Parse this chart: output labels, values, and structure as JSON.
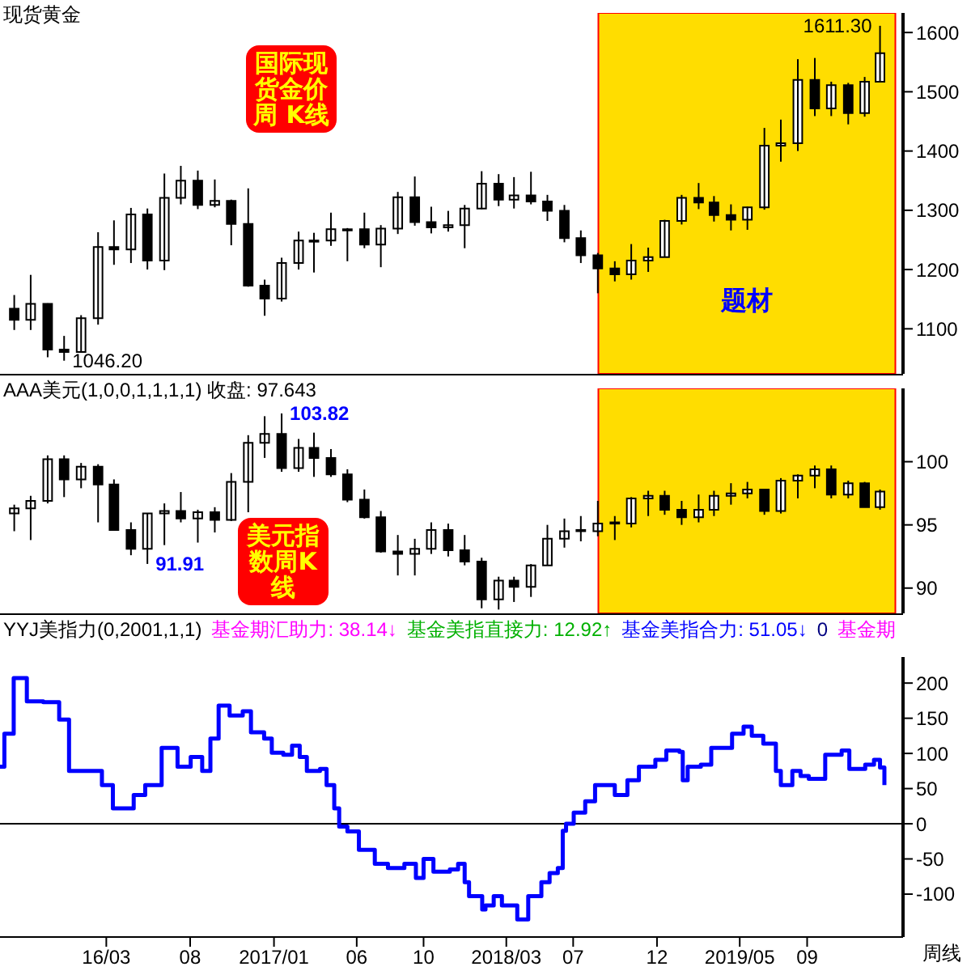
{
  "chart_data": [
    {
      "type": "candlestick",
      "title": "现货黄金",
      "color": "#000000",
      "x": [
        "2015-09-15",
        "2015-10-15",
        "2015-11-15",
        "2015-12-15",
        "2016-01-15",
        "2016-02-15",
        "2016-03-15",
        "2016-04-15",
        "2016-05-15",
        "2016-06-15",
        "2016-07-15",
        "2016-08-15",
        "2016-09-15",
        "2016-10-15",
        "2016-11-15",
        "2016-12-15",
        "2017-01-15",
        "2017-02-15",
        "2017-03-15",
        "2017-04-15",
        "2017-05-15",
        "2017-06-15",
        "2017-07-15",
        "2017-08-15",
        "2017-09-15",
        "2017-10-15",
        "2017-11-15",
        "2017-12-15",
        "2018-01-15",
        "2018-02-15",
        "2018-03-15",
        "2018-04-15",
        "2018-05-15",
        "2018-06-15",
        "2018-07-15",
        "2018-08-15",
        "2018-09-15",
        "2018-10-15",
        "2018-11-15",
        "2018-12-15",
        "2019-01-15",
        "2019-02-15",
        "2019-03-15",
        "2019-04-15",
        "2019-05-15",
        "2019-06-15",
        "2019-07-15",
        "2019-08-15",
        "2019-09-15",
        "2019-10-15",
        "2019-11-15",
        "2019-12-15",
        "2020-01-12"
      ],
      "ohlc": [
        [
          1134,
          1157,
          1098,
          1115
        ],
        [
          1115,
          1191,
          1098,
          1142
        ],
        [
          1142,
          1143,
          1052,
          1065
        ],
        [
          1065,
          1088,
          1046.2,
          1061
        ],
        [
          1061,
          1123,
          1060,
          1118
        ],
        [
          1118,
          1263,
          1107,
          1238
        ],
        [
          1238,
          1283,
          1208,
          1234
        ],
        [
          1234,
          1304,
          1211,
          1293
        ],
        [
          1293,
          1303,
          1200,
          1215
        ],
        [
          1215,
          1362,
          1199,
          1321
        ],
        [
          1321,
          1375,
          1310,
          1350
        ],
        [
          1350,
          1367,
          1302,
          1309
        ],
        [
          1309,
          1352,
          1305,
          1316
        ],
        [
          1316,
          1318,
          1241,
          1277
        ],
        [
          1277,
          1337,
          1171,
          1173
        ],
        [
          1173,
          1183,
          1122,
          1151
        ],
        [
          1151,
          1220,
          1146,
          1211
        ],
        [
          1211,
          1264,
          1200,
          1249
        ],
        [
          1249,
          1262,
          1195,
          1247
        ],
        [
          1249,
          1296,
          1240,
          1268
        ],
        [
          1268,
          1270,
          1214,
          1266
        ],
        [
          1268,
          1296,
          1236,
          1242
        ],
        [
          1242,
          1275,
          1204,
          1269
        ],
        [
          1269,
          1331,
          1260,
          1322
        ],
        [
          1322,
          1357,
          1274,
          1280
        ],
        [
          1280,
          1306,
          1261,
          1271
        ],
        [
          1271,
          1299,
          1264,
          1275
        ],
        [
          1275,
          1309,
          1236,
          1303
        ],
        [
          1303,
          1366,
          1302,
          1345
        ],
        [
          1345,
          1361,
          1307,
          1318
        ],
        [
          1318,
          1356,
          1303,
          1325
        ],
        [
          1325,
          1365,
          1310,
          1315
        ],
        [
          1315,
          1326,
          1282,
          1299
        ],
        [
          1299,
          1309,
          1246,
          1253
        ],
        [
          1253,
          1266,
          1211,
          1224
        ],
        [
          1224,
          1228,
          1160,
          1202
        ],
        [
          1202,
          1214,
          1180,
          1192
        ],
        [
          1192,
          1243,
          1183,
          1215
        ],
        [
          1215,
          1237,
          1196,
          1221
        ],
        [
          1221,
          1284,
          1221,
          1282
        ],
        [
          1282,
          1326,
          1276,
          1321
        ],
        [
          1321,
          1346,
          1302,
          1313
        ],
        [
          1313,
          1324,
          1281,
          1292
        ],
        [
          1292,
          1310,
          1266,
          1284
        ],
        [
          1284,
          1306,
          1267,
          1305
        ],
        [
          1305,
          1439,
          1301,
          1409
        ],
        [
          1409,
          1453,
          1382,
          1413
        ],
        [
          1413,
          1555,
          1400,
          1520
        ],
        [
          1520,
          1557,
          1459,
          1472
        ],
        [
          1472,
          1517,
          1459,
          1511
        ],
        [
          1511,
          1515,
          1445,
          1464
        ],
        [
          1464,
          1525,
          1458,
          1517
        ],
        [
          1517,
          1611.3,
          1517,
          1565
        ]
      ],
      "xlim": [
        "2015-08-20",
        "2020-02-23"
      ],
      "ylim": [
        1024,
        1633
      ],
      "yticks": [
        1100,
        1200,
        1300,
        1400,
        1500,
        1600
      ],
      "tick_labels": "y",
      "bands": [
        {
          "axis": "x",
          "from": "2018-08-16",
          "to": "2020-02-09",
          "label": "题材",
          "color": "#ffdd00"
        }
      ],
      "annotations": [
        "国际现货金价周 K线",
        {
          "text": "1611.30",
          "x": "2020-01-12",
          "y": 1611.3
        },
        {
          "text": "1046.20",
          "x": "2015-12-15",
          "y": 1046.2
        }
      ]
    },
    {
      "type": "candlestick",
      "title": "AAA美元(1,0,0,1,1,1,1) 收盘: 97.643",
      "color": "#000000",
      "x": [
        "2015-09-15",
        "2015-10-15",
        "2015-11-15",
        "2015-12-15",
        "2016-01-15",
        "2016-02-15",
        "2016-03-15",
        "2016-04-15",
        "2016-05-15",
        "2016-06-15",
        "2016-07-15",
        "2016-08-15",
        "2016-09-15",
        "2016-10-15",
        "2016-11-15",
        "2016-12-15",
        "2017-01-15",
        "2017-02-15",
        "2017-03-15",
        "2017-04-15",
        "2017-05-15",
        "2017-06-15",
        "2017-07-15",
        "2017-08-15",
        "2017-09-15",
        "2017-10-15",
        "2017-11-15",
        "2017-12-15",
        "2018-01-15",
        "2018-02-15",
        "2018-03-15",
        "2018-04-15",
        "2018-05-15",
        "2018-06-15",
        "2018-07-15",
        "2018-08-15",
        "2018-09-15",
        "2018-10-15",
        "2018-11-15",
        "2018-12-15",
        "2019-01-15",
        "2019-02-15",
        "2019-03-15",
        "2019-04-15",
        "2019-05-15",
        "2019-06-15",
        "2019-07-15",
        "2019-08-15",
        "2019-09-15",
        "2019-10-15",
        "2019-11-15",
        "2019-12-15",
        "2020-01-12"
      ],
      "ohlc": [
        [
          95.9,
          96.6,
          94.5,
          96.3
        ],
        [
          96.3,
          97.3,
          93.8,
          96.9
        ],
        [
          96.9,
          100.5,
          96.7,
          100.2
        ],
        [
          100.2,
          100.5,
          97.2,
          98.6
        ],
        [
          98.6,
          99.9,
          97.9,
          99.6
        ],
        [
          99.6,
          99.8,
          95.2,
          98.2
        ],
        [
          98.2,
          98.6,
          94.6,
          94.6
        ],
        [
          94.6,
          95.2,
          92.6,
          93.1
        ],
        [
          93.1,
          95.9,
          91.91,
          95.9
        ],
        [
          95.9,
          96.7,
          93.4,
          96.1
        ],
        [
          96.1,
          97.6,
          95.2,
          95.5
        ],
        [
          95.5,
          96.2,
          93.6,
          96.0
        ],
        [
          96.0,
          96.4,
          94.4,
          95.4
        ],
        [
          95.4,
          99.1,
          95.3,
          98.4
        ],
        [
          98.4,
          102.1,
          96.0,
          101.5
        ],
        [
          101.5,
          103.6,
          100.3,
          102.2
        ],
        [
          102.2,
          103.82,
          99.2,
          99.5
        ],
        [
          99.5,
          101.8,
          99.2,
          101.1
        ],
        [
          101.1,
          102.3,
          98.8,
          100.3
        ],
        [
          100.3,
          101.0,
          98.8,
          99.0
        ],
        [
          99.0,
          99.4,
          96.8,
          97.0
        ],
        [
          97.0,
          97.8,
          95.5,
          95.6
        ],
        [
          95.6,
          96.1,
          92.8,
          92.9
        ],
        [
          92.9,
          94.2,
          91.0,
          92.7
        ],
        [
          92.7,
          93.9,
          91.0,
          93.1
        ],
        [
          93.1,
          95.2,
          92.7,
          94.6
        ],
        [
          94.6,
          95.1,
          92.5,
          93.0
        ],
        [
          93.0,
          94.2,
          91.8,
          92.1
        ],
        [
          92.1,
          92.4,
          88.4,
          89.1
        ],
        [
          89.1,
          90.9,
          88.3,
          90.6
        ],
        [
          90.6,
          90.9,
          88.9,
          90.1
        ],
        [
          90.1,
          91.9,
          89.3,
          91.8
        ],
        [
          91.8,
          95.0,
          91.8,
          93.9
        ],
        [
          93.9,
          95.5,
          93.2,
          94.5
        ],
        [
          94.5,
          95.7,
          93.7,
          94.6
        ],
        [
          94.5,
          96.9,
          94.1,
          95.1
        ],
        [
          95.1,
          95.7,
          93.8,
          95.2
        ],
        [
          95.1,
          97.2,
          94.8,
          97.1
        ],
        [
          97.1,
          97.7,
          95.7,
          97.3
        ],
        [
          97.3,
          97.7,
          95.8,
          96.2
        ],
        [
          96.2,
          96.9,
          95.0,
          95.6
        ],
        [
          95.6,
          97.4,
          95.2,
          96.2
        ],
        [
          96.2,
          97.7,
          95.7,
          97.3
        ],
        [
          97.3,
          98.3,
          96.6,
          97.5
        ],
        [
          97.5,
          98.4,
          97.1,
          97.8
        ],
        [
          97.8,
          97.8,
          95.8,
          96.1
        ],
        [
          96.1,
          98.7,
          95.9,
          98.5
        ],
        [
          98.5,
          99.0,
          97.1,
          98.9
        ],
        [
          98.9,
          99.7,
          97.9,
          99.4
        ],
        [
          99.4,
          99.7,
          97.1,
          97.4
        ],
        [
          97.4,
          98.5,
          97.1,
          98.3
        ],
        [
          98.3,
          98.4,
          96.4,
          96.4
        ],
        [
          96.4,
          97.8,
          96.2,
          97.643
        ]
      ],
      "xlim": [
        "2015-08-20",
        "2020-02-23"
      ],
      "ylim": [
        88,
        105.8
      ],
      "yticks": [
        90,
        95,
        100
      ],
      "tick_labels": "y",
      "bands": [
        {
          "axis": "x",
          "from": "2018-08-16",
          "to": "2020-02-09",
          "color": "#ffdd00"
        }
      ],
      "annotations": [
        "美元指数周K线",
        {
          "text": "103.82",
          "x": "2017-01-15",
          "y": 103.82
        },
        {
          "text": "91.91",
          "x": "2016-05-15",
          "y": 91.91
        }
      ]
    },
    {
      "type": "step",
      "title": "YYJ美指力(0,2001,1,1)",
      "xlabel": "周线",
      "series": [
        {
          "color": "#0000ff",
          "x": [
            "2015-08-20",
            "2015-08-28",
            "2015-09-14",
            "2015-10-08",
            "2015-11-07",
            "2015-12-06",
            "2015-12-24",
            "2016-01-14",
            "2016-02-22",
            "2016-03-13",
            "2016-04-06",
            "2016-04-20",
            "2016-05-11",
            "2016-06-10",
            "2016-07-09",
            "2016-08-02",
            "2016-08-23",
            "2016-09-07",
            "2016-09-22",
            "2016-10-12",
            "2016-11-05",
            "2016-11-20",
            "2016-12-14",
            "2016-12-28",
            "2017-01-18",
            "2017-02-03",
            "2017-02-17",
            "2017-03-02",
            "2017-03-26",
            "2017-04-07",
            "2017-04-21",
            "2017-04-30",
            "2017-05-15",
            "2017-06-05",
            "2017-07-04",
            "2017-07-28",
            "2017-08-27",
            "2017-09-17",
            "2017-10-01",
            "2017-10-19",
            "2017-11-18",
            "2017-12-03",
            "2017-12-15",
            "2017-12-23",
            "2018-01-16",
            "2018-01-22",
            "2018-02-06",
            "2018-02-21",
            "2018-03-21",
            "2018-04-10",
            "2018-05-04",
            "2018-05-19",
            "2018-06-03",
            "2018-06-12",
            "2018-06-18",
            "2018-07-02",
            "2018-07-23",
            "2018-08-10",
            "2018-09-01",
            "2018-09-15",
            "2018-10-08",
            "2018-10-29",
            "2018-11-28",
            "2018-12-18",
            "2019-01-11",
            "2019-01-17",
            "2019-01-26",
            "2019-02-19",
            "2019-03-10",
            "2019-04-03",
            "2019-04-17",
            "2019-05-08",
            "2019-05-23",
            "2019-06-13",
            "2019-07-06",
            "2019-07-15",
            "2019-08-05",
            "2019-08-20",
            "2019-09-04",
            "2019-10-04",
            "2019-11-03",
            "2019-11-17",
            "2019-12-16",
            "2020-01-01",
            "2020-01-12",
            "2020-01-20"
          ],
          "values": [
            81,
            128,
            207,
            174,
            173,
            148,
            75,
            75,
            55,
            22,
            22,
            41,
            55,
            108,
            81,
            95,
            75,
            121,
            168,
            154,
            160,
            130,
            121,
            101,
            98,
            111,
            95,
            75,
            78,
            55,
            22,
            -4,
            -11,
            -37,
            -57,
            -63,
            -57,
            -77,
            -50,
            -68,
            -65,
            -57,
            -83,
            -103,
            -122,
            -116,
            -103,
            -116,
            -136,
            -103,
            -83,
            -70,
            -63,
            -10,
            0,
            16,
            32,
            55,
            55,
            41,
            62,
            81,
            91,
            104,
            102,
            62,
            81,
            84,
            108,
            108,
            128,
            138,
            125,
            114,
            75,
            55,
            75,
            68,
            64,
            98,
            104,
            78,
            84,
            91,
            80,
            55
          ]
        }
      ],
      "xlim": [
        "2015-08-20",
        "2020-02-23"
      ],
      "xticks": [
        {
          "value": "2016-03",
          "label": "16/03"
        },
        {
          "value": "2016-08",
          "label": "08"
        },
        {
          "value": "2017-01",
          "label": "2017/01"
        },
        {
          "value": "2017-06",
          "label": "06"
        },
        {
          "value": "2017-10",
          "label": "10"
        },
        {
          "value": "2018-03",
          "label": "2018/03"
        },
        {
          "value": "2018-07",
          "label": "07"
        },
        {
          "value": "2018-12",
          "label": "12"
        },
        {
          "value": "2019-05",
          "label": "2019/05"
        },
        {
          "value": "2019-09",
          "label": "09"
        }
      ],
      "ylim": [
        -161,
        237
      ],
      "yticks": [
        -100,
        -50,
        0,
        50,
        100,
        150,
        200
      ],
      "ref_lines": [
        {
          "axis": "y",
          "value": 0,
          "color": "#000000"
        }
      ],
      "annotations": [
        "基金期汇助力: 38.14↓",
        "基金美指直接力: 12.92↑",
        "基金美指合力: 51.05↓",
        "0",
        "基金期"
      ]
    }
  ]
}
